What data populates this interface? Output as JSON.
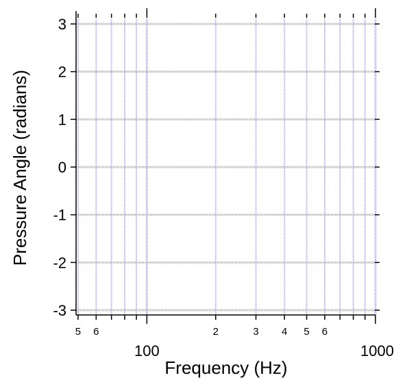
{
  "chart_data": {
    "type": "line",
    "xlabel": "Frequency (Hz)",
    "ylabel": "Pressure Angle (radians)",
    "x_scale": "log",
    "xlim": [
      49,
      1000
    ],
    "ylim": [
      -3.1,
      3.1
    ],
    "x_major_ticks": [
      {
        "value": 100,
        "label": "100"
      },
      {
        "value": 1000,
        "label": "1000"
      }
    ],
    "x_minor_ticks": [
      {
        "value": 50,
        "label": "5"
      },
      {
        "value": 60,
        "label": "6"
      },
      {
        "value": 70,
        "label": ""
      },
      {
        "value": 80,
        "label": ""
      },
      {
        "value": 90,
        "label": ""
      },
      {
        "value": 200,
        "label": "2"
      },
      {
        "value": 300,
        "label": "3"
      },
      {
        "value": 400,
        "label": "4"
      },
      {
        "value": 500,
        "label": "5"
      },
      {
        "value": 600,
        "label": "6"
      },
      {
        "value": 700,
        "label": ""
      },
      {
        "value": 800,
        "label": ""
      },
      {
        "value": 900,
        "label": ""
      }
    ],
    "y_ticks": [
      {
        "value": 3,
        "label": "3"
      },
      {
        "value": 2,
        "label": "2"
      },
      {
        "value": 1,
        "label": "1"
      },
      {
        "value": 0,
        "label": "0"
      },
      {
        "value": -1,
        "label": "-1"
      },
      {
        "value": -2,
        "label": "-2"
      },
      {
        "value": -3,
        "label": "-3"
      }
    ],
    "grid": true,
    "grid_color": "#a6a6f0",
    "series": []
  }
}
